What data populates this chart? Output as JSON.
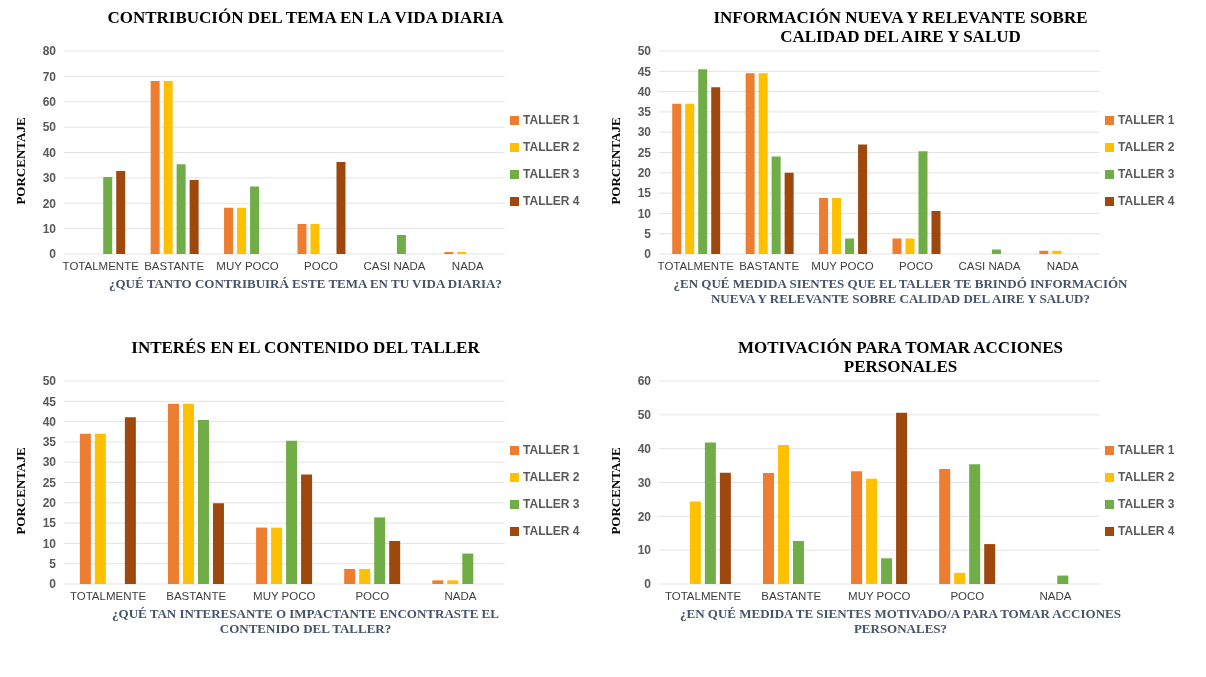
{
  "chart_data": [
    {
      "type": "bar",
      "title": "CONTRIBUCIÓN DEL TEMA EN LA VIDA DIARIA",
      "xlabel": "¿QUÉ TANTO CONTRIBUIRÁ ESTE TEMA EN TU VIDA DIARIA?",
      "ylabel": "PORCENTAJE",
      "categories": [
        "TOTALMENTE",
        "BASTANTE",
        "MUY POCO",
        "POCO",
        "CASI NADA",
        "NADA"
      ],
      "ylim": [
        0,
        80
      ],
      "yticks": [
        0,
        10,
        20,
        30,
        40,
        50,
        60,
        70,
        80
      ],
      "grid": "y",
      "legend": "right",
      "series": [
        {
          "name": "TALLER 1",
          "color": "#ed7d31",
          "values": [
            0,
            68.2,
            18.2,
            11.8,
            0,
            0.8
          ]
        },
        {
          "name": "TALLER 2",
          "color": "#ffc000",
          "values": [
            0,
            68.2,
            18.2,
            11.8,
            0,
            0.8
          ]
        },
        {
          "name": "TALLER 3",
          "color": "#70ad47",
          "values": [
            30.3,
            35.4,
            26.6,
            0,
            7.5,
            0
          ]
        },
        {
          "name": "TALLER 4",
          "color": "#9e480e",
          "values": [
            32.7,
            29.2,
            0,
            36.3,
            0,
            0
          ]
        }
      ]
    },
    {
      "type": "bar",
      "title": "INFORMACIÓN NUEVA Y RELEVANTE SOBRE CALIDAD DEL AIRE Y SALUD",
      "xlabel": "¿EN QUÉ MEDIDA SIENTES QUE EL TALLER TE BRINDÓ INFORMACIÓN NUEVA Y RELEVANTE SOBRE CALIDAD DEL AIRE Y SALUD?",
      "ylabel": "PORCENTAJE",
      "categories": [
        "TOTALMENTE",
        "BASTANTE",
        "MUY POCO",
        "POCO",
        "CASI NADA",
        "NADA"
      ],
      "ylim": [
        0,
        50
      ],
      "yticks": [
        0,
        5,
        10,
        15,
        20,
        25,
        30,
        35,
        40,
        45,
        50
      ],
      "grid": "y",
      "legend": "right",
      "series": [
        {
          "name": "TALLER 1",
          "color": "#ed7d31",
          "values": [
            37,
            44.5,
            13.8,
            3.8,
            0,
            0.8
          ]
        },
        {
          "name": "TALLER 2",
          "color": "#ffc000",
          "values": [
            37,
            44.5,
            13.8,
            3.8,
            0,
            0.8
          ]
        },
        {
          "name": "TALLER 3",
          "color": "#70ad47",
          "values": [
            45.5,
            24,
            3.8,
            25.3,
            1.1,
            0
          ]
        },
        {
          "name": "TALLER 4",
          "color": "#9e480e",
          "values": [
            41.1,
            20,
            27,
            10.6,
            0,
            0
          ]
        }
      ]
    },
    {
      "type": "bar",
      "title": "INTERÉS EN EL CONTENIDO DEL TALLER",
      "xlabel": "¿QUÉ TAN INTERESANTE  O IMPACTANTE ENCONTRASTE EL CONTENIDO DEL TALLER?",
      "ylabel": "PORCENTAJE",
      "categories": [
        "TOTALMENTE",
        "BASTANTE",
        "MUY POCO",
        "POCO",
        "NADA"
      ],
      "ylim": [
        0,
        50
      ],
      "yticks": [
        0,
        5,
        10,
        15,
        20,
        25,
        30,
        35,
        40,
        45,
        50
      ],
      "grid": "y",
      "legend": "right",
      "series": [
        {
          "name": "TALLER 1",
          "color": "#ed7d31",
          "values": [
            37,
            44.4,
            13.9,
            3.7,
            0.9
          ]
        },
        {
          "name": "TALLER 2",
          "color": "#ffc000",
          "values": [
            37,
            44.4,
            13.9,
            3.7,
            0.9
          ]
        },
        {
          "name": "TALLER 3",
          "color": "#70ad47",
          "values": [
            0,
            40.4,
            35.3,
            16.4,
            7.5
          ]
        },
        {
          "name": "TALLER 4",
          "color": "#9e480e",
          "values": [
            41.1,
            19.9,
            27,
            10.6,
            0
          ]
        }
      ]
    },
    {
      "type": "bar",
      "title": "MOTIVACIÓN PARA TOMAR ACCIONES PERSONALES",
      "xlabel": "¿EN QUÉ MEDIDA TE SIENTES MOTIVADO/A PARA TOMAR ACCIONES PERSONALES?",
      "ylabel": "PORCENTAJE",
      "categories": [
        "TOTALMENTE",
        "BASTANTE",
        "MUY POCO",
        "POCO",
        "NADA"
      ],
      "ylim": [
        0,
        60
      ],
      "yticks": [
        0,
        10,
        20,
        30,
        40,
        50,
        60
      ],
      "grid": "y",
      "legend": "right",
      "series": [
        {
          "name": "TALLER 1",
          "color": "#ed7d31",
          "values": [
            0,
            32.8,
            33.3,
            34,
            0
          ]
        },
        {
          "name": "TALLER 2",
          "color": "#ffc000",
          "values": [
            24.4,
            41.1,
            31.1,
            3.3,
            0
          ]
        },
        {
          "name": "TALLER 3",
          "color": "#70ad47",
          "values": [
            41.8,
            12.7,
            7.6,
            35.4,
            2.5
          ]
        },
        {
          "name": "TALLER 4",
          "color": "#9e480e",
          "values": [
            32.9,
            0,
            50.6,
            11.8,
            0
          ]
        }
      ]
    }
  ]
}
